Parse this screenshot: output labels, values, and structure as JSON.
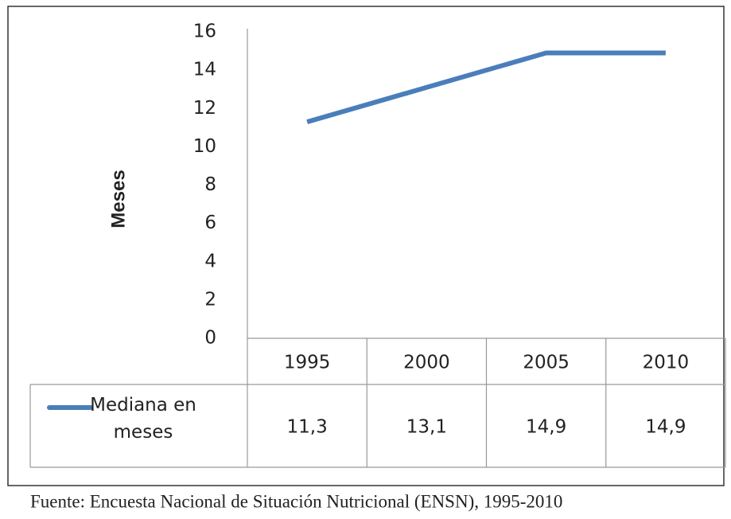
{
  "chart_data": {
    "type": "line",
    "y_label": "Meses",
    "categories": [
      "1995",
      "2000",
      "2005",
      "2010"
    ],
    "series": [
      {
        "name": "Mediana en meses",
        "color": "#4a7ebb",
        "values": [
          11.3,
          13.1,
          14.9,
          14.9
        ],
        "value_labels": [
          "11,3",
          "13,1",
          "14,9",
          "14,9"
        ]
      }
    ],
    "ylim": [
      0,
      16
    ],
    "yticks": [
      0,
      2,
      4,
      6,
      8,
      10,
      12,
      14,
      16
    ],
    "source": "Fuente: Encuesta Nacional de Situación Nutricional (ENSN), 1995-2010"
  }
}
